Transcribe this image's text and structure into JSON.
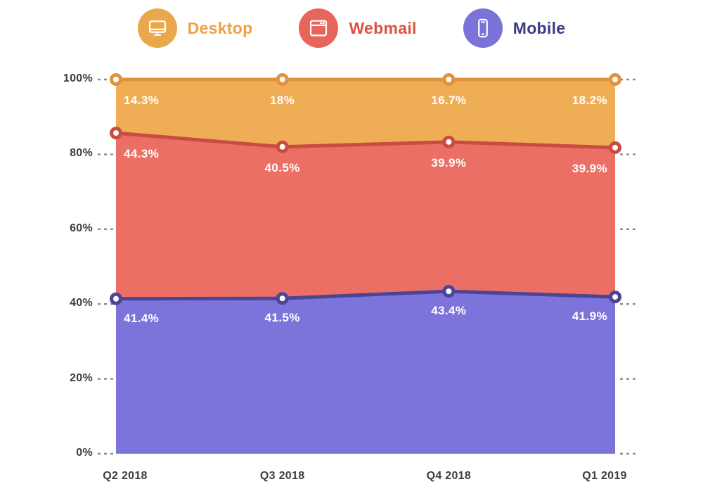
{
  "colors": {
    "background": "#ffffff",
    "tick": "#8a8a8a",
    "axis_text": "#3e3e3e",
    "data_label_text": "#ffffff"
  },
  "legend": [
    {
      "label": "Desktop",
      "icon": "desktop-icon",
      "circle_color": "#EAA84D",
      "text_color": "#EDA044"
    },
    {
      "label": "Webmail",
      "icon": "webmail-icon",
      "circle_color": "#E8655C",
      "text_color": "#DB5247"
    },
    {
      "label": "Mobile",
      "icon": "mobile-icon",
      "circle_color": "#7B73DA",
      "text_color": "#3C3A86"
    }
  ],
  "chart_data": {
    "type": "area",
    "stacked": true,
    "title": "",
    "xlabel": "",
    "ylabel": "",
    "ylim": [
      0,
      100
    ],
    "legend_position": "top",
    "grid": "dashed ticks on left and right at every 20%",
    "x": [
      "Q2 2018",
      "Q3 2018",
      "Q4 2018",
      "Q1 2019"
    ],
    "y_ticks": [
      "100%",
      "80%",
      "60%",
      "40%",
      "20%",
      "0%"
    ],
    "series": [
      {
        "name": "Mobile",
        "values": [
          41.4,
          41.5,
          43.4,
          41.9
        ],
        "display_labels": [
          "41.4%",
          "41.5%",
          "43.4%",
          "41.9%"
        ],
        "fill": "#7C74DB",
        "line": "#4C4494"
      },
      {
        "name": "Webmail",
        "values": [
          44.3,
          40.5,
          39.9,
          39.9
        ],
        "display_labels": [
          "44.3%",
          "40.5%",
          "39.9%",
          "39.9%"
        ],
        "fill": "#EC6F65",
        "line": "#C94B41"
      },
      {
        "name": "Desktop",
        "values": [
          14.3,
          18.0,
          16.7,
          18.2
        ],
        "display_labels": [
          "14.3%",
          "18%",
          "16.7%",
          "18.2%"
        ],
        "fill": "#EFAD55",
        "line": "#E0923D"
      }
    ]
  }
}
